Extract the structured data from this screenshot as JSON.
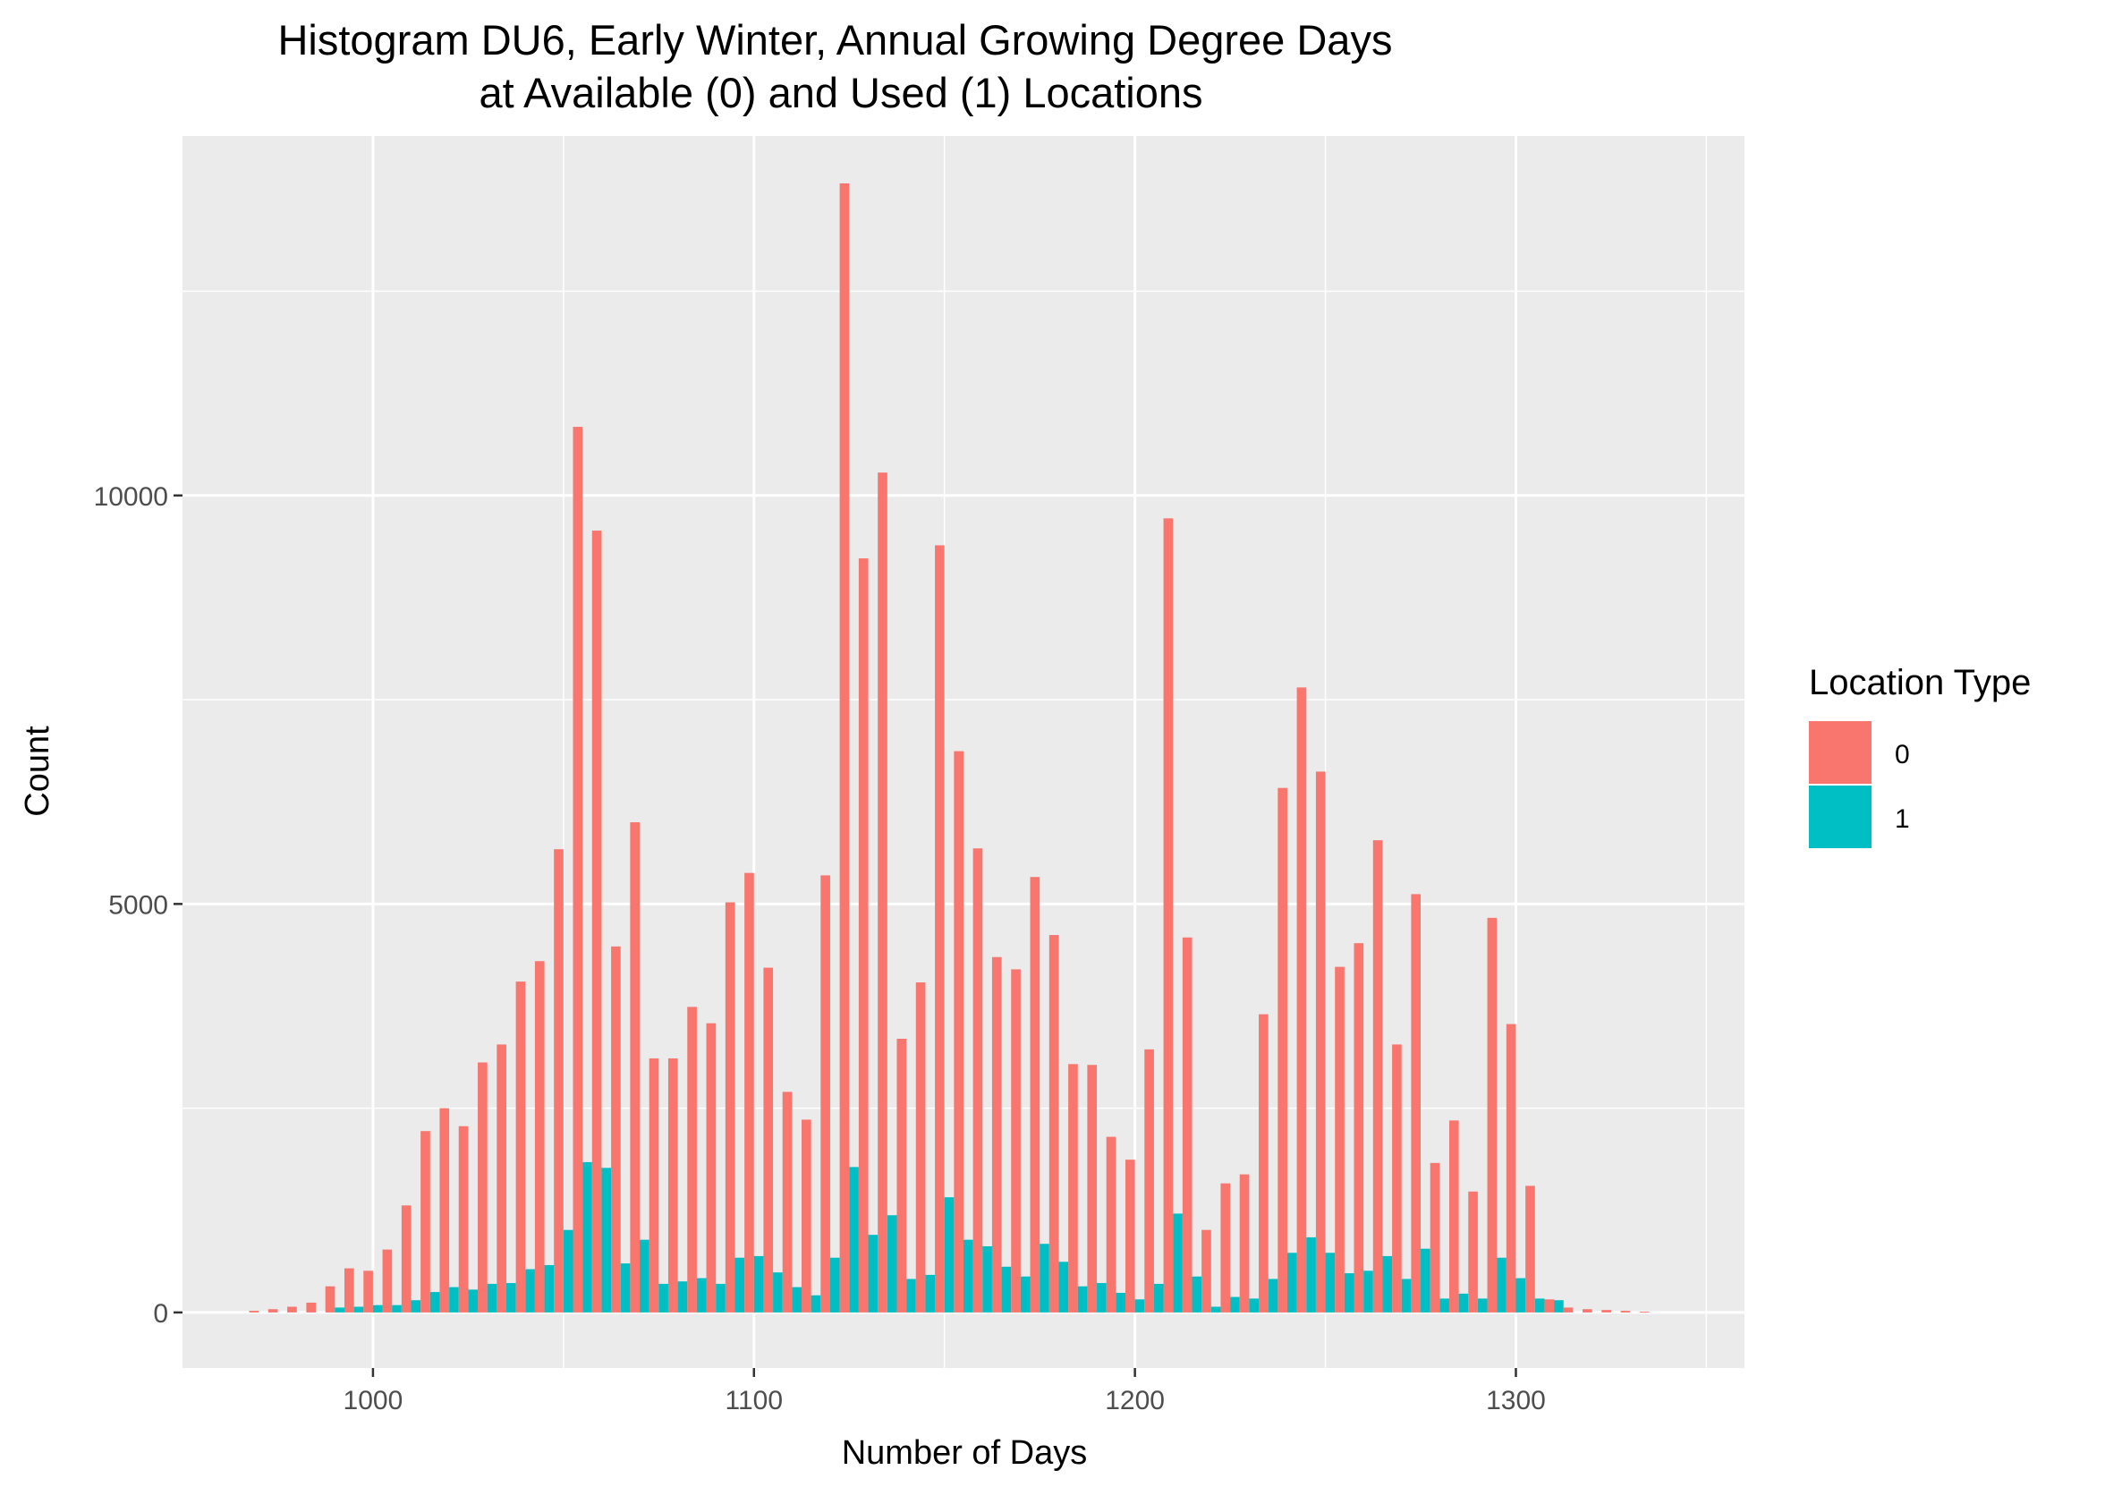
{
  "chart_data": {
    "type": "bar",
    "title": "Histogram DU6, Early Winter, Annual Growing Degree Days\nat Available (0) and Used (1) Locations",
    "xlabel": "Number of Days",
    "ylabel": "Count",
    "xlim": [
      950,
      1360
    ],
    "ylim": [
      -680,
      14400
    ],
    "x_ticks": [
      1000,
      1100,
      1200,
      1300
    ],
    "y_ticks": [
      0,
      5000,
      10000
    ],
    "grid": true,
    "bin_width": 5,
    "legend": {
      "title": "Location Type",
      "position": "right",
      "entries": [
        {
          "label": "0",
          "color": "#F8766D"
        },
        {
          "label": "1",
          "color": "#00BFC4"
        }
      ]
    },
    "x": [
      970,
      975,
      980,
      985,
      990,
      995,
      1000,
      1005,
      1010,
      1015,
      1020,
      1025,
      1030,
      1035,
      1040,
      1045,
      1050,
      1055,
      1060,
      1065,
      1070,
      1075,
      1080,
      1085,
      1090,
      1095,
      1100,
      1105,
      1110,
      1115,
      1120,
      1125,
      1130,
      1135,
      1140,
      1145,
      1150,
      1155,
      1160,
      1165,
      1170,
      1175,
      1180,
      1185,
      1190,
      1195,
      1200,
      1205,
      1210,
      1215,
      1220,
      1225,
      1230,
      1235,
      1240,
      1245,
      1250,
      1255,
      1260,
      1265,
      1270,
      1275,
      1280,
      1285,
      1290,
      1295,
      1300,
      1305,
      1310,
      1315,
      1320,
      1325,
      1330,
      1335
    ],
    "series": [
      {
        "name": "0",
        "color": "#F8766D",
        "values": [
          20,
          40,
          70,
          120,
          320,
          540,
          510,
          770,
          1310,
          2220,
          2500,
          2280,
          3060,
          3280,
          4050,
          4300,
          5670,
          10840,
          9570,
          4480,
          6000,
          3110,
          3110,
          3740,
          3540,
          5020,
          5380,
          4220,
          2700,
          2360,
          5350,
          13820,
          9230,
          10280,
          3350,
          4040,
          9390,
          6870,
          5680,
          4350,
          4200,
          5330,
          4620,
          3040,
          3030,
          2150,
          1870,
          3220,
          9720,
          4590,
          1010,
          1580,
          1690,
          3650,
          6420,
          7650,
          6620,
          4230,
          4520,
          5780,
          3280,
          5120,
          1830,
          2350,
          1480,
          4830,
          3530,
          1550,
          160,
          60,
          40,
          30,
          20,
          10
        ]
      },
      {
        "name": "1",
        "color": "#00BFC4",
        "values": [
          0,
          0,
          0,
          0,
          60,
          70,
          90,
          90,
          150,
          250,
          310,
          280,
          350,
          360,
          530,
          580,
          1010,
          1840,
          1770,
          600,
          890,
          350,
          380,
          420,
          350,
          670,
          690,
          490,
          310,
          210,
          670,
          1780,
          950,
          1190,
          410,
          460,
          1410,
          890,
          810,
          560,
          440,
          840,
          620,
          320,
          360,
          240,
          160,
          350,
          1210,
          440,
          70,
          190,
          170,
          410,
          730,
          920,
          730,
          480,
          510,
          690,
          410,
          780,
          170,
          230,
          170,
          670,
          420,
          170,
          150,
          0,
          0,
          0,
          0,
          0
        ]
      }
    ]
  }
}
